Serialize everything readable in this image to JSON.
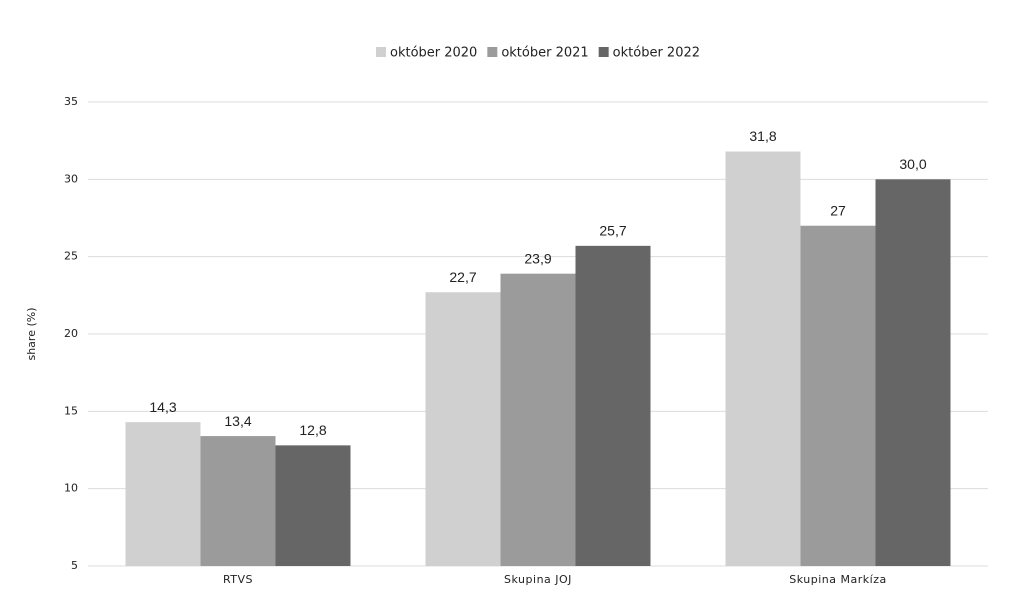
{
  "chart_data": {
    "type": "bar",
    "y_label": "share (%)",
    "categories": [
      "RTVS",
      "Skupina JOJ",
      "Skupina Markíza"
    ],
    "series": [
      {
        "name": "október 2020",
        "color": "#d0d0d0",
        "values": [
          14.3,
          22.7,
          31.8
        ],
        "value_labels": [
          "14,3",
          "22,7",
          "31,8"
        ]
      },
      {
        "name": "október 2021",
        "color": "#9b9b9b",
        "values": [
          13.4,
          23.9,
          27
        ],
        "value_labels": [
          "13,4",
          "23,9",
          "27"
        ]
      },
      {
        "name": "október 2022",
        "color": "#666666",
        "values": [
          12.8,
          25.7,
          30.0
        ],
        "value_labels": [
          "12,8",
          "25,7",
          "30,0"
        ]
      }
    ],
    "ylim": [
      5,
      35
    ],
    "yticks": [
      5,
      10,
      15,
      20,
      25,
      30,
      35
    ],
    "grid": true,
    "legend": "top"
  }
}
